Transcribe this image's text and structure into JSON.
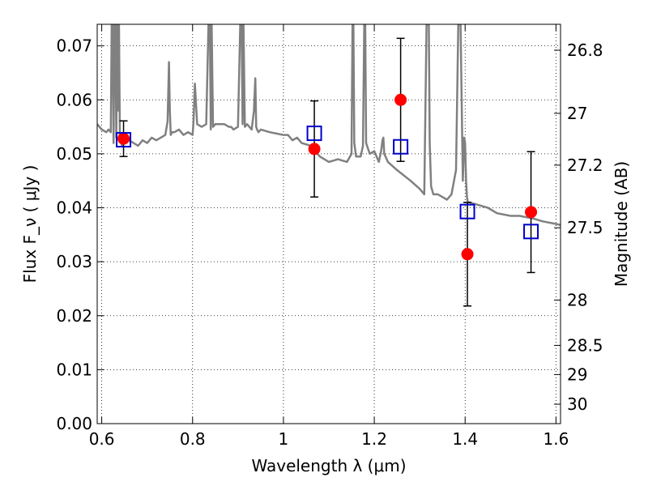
{
  "chart_data": {
    "type": "scatter",
    "xlabel": "Wavelength  λ (μm)",
    "ylabel": "Flux  F_ν ( μJy )",
    "ylabel_right": "Magnitude (AB)",
    "xlim": [
      0.59,
      1.61
    ],
    "ylim": [
      0.0,
      0.074
    ],
    "grid": true,
    "x_ticks": [
      0.6,
      0.8,
      1.0,
      1.2,
      1.4,
      1.6
    ],
    "x_tick_labels": [
      "0.6",
      "0.8",
      "1",
      "1.2",
      "1.4",
      "1.6"
    ],
    "y_ticks": [
      0.0,
      0.01,
      0.02,
      0.03,
      0.04,
      0.05,
      0.06,
      0.07
    ],
    "y_tick_labels": [
      "0.00",
      "0.01",
      "0.02",
      "0.03",
      "0.04",
      "0.05",
      "0.06",
      "0.07"
    ],
    "right_ticks": [
      {
        "label": "26.8",
        "flux": 0.0692
      },
      {
        "label": "27",
        "flux": 0.0575
      },
      {
        "label": "27.2",
        "flux": 0.0479
      },
      {
        "label": "27.5",
        "flux": 0.0363
      },
      {
        "label": "28",
        "flux": 0.0229
      },
      {
        "label": "28.5",
        "flux": 0.0145
      },
      {
        "label": "29",
        "flux": 0.0091
      },
      {
        "label": "30",
        "flux": 0.0036
      }
    ],
    "observed": {
      "points": [
        {
          "x": 0.648,
          "y": 0.0528,
          "err": 0.0033
        },
        {
          "x": 1.068,
          "y": 0.0509,
          "err": 0.0089
        },
        {
          "x": 1.258,
          "y": 0.06,
          "err": 0.0114
        },
        {
          "x": 1.405,
          "y": 0.0314,
          "err": 0.0096
        },
        {
          "x": 1.545,
          "y": 0.0392,
          "err": 0.0112
        }
      ],
      "color": "#ff0000"
    },
    "model_photometry": {
      "points": [
        {
          "x": 0.648,
          "y": 0.0526
        },
        {
          "x": 1.068,
          "y": 0.0538
        },
        {
          "x": 1.258,
          "y": 0.0513
        },
        {
          "x": 1.405,
          "y": 0.0393
        },
        {
          "x": 1.545,
          "y": 0.0356
        }
      ],
      "color": "#0000cc"
    },
    "spectrum": {
      "color": "#808080",
      "x": [
        0.59,
        0.6,
        0.61,
        0.615,
        0.62,
        0.622,
        0.624,
        0.626,
        0.628,
        0.63,
        0.632,
        0.634,
        0.636,
        0.638,
        0.64,
        0.645,
        0.65,
        0.66,
        0.67,
        0.68,
        0.69,
        0.7,
        0.71,
        0.72,
        0.73,
        0.74,
        0.745,
        0.748,
        0.75,
        0.752,
        0.755,
        0.76,
        0.77,
        0.78,
        0.79,
        0.8,
        0.802,
        0.805,
        0.81,
        0.82,
        0.83,
        0.835,
        0.838,
        0.84,
        0.842,
        0.845,
        0.85,
        0.87,
        0.88,
        0.885,
        0.89,
        0.9,
        0.905,
        0.908,
        0.91,
        0.912,
        0.915,
        0.92,
        0.93,
        0.935,
        0.938,
        0.94,
        0.942,
        0.945,
        0.95,
        0.97,
        1.0,
        1.01,
        1.02,
        1.03,
        1.04,
        1.06,
        1.07,
        1.08,
        1.1,
        1.12,
        1.14,
        1.15,
        1.152,
        1.154,
        1.156,
        1.16,
        1.17,
        1.175,
        1.178,
        1.18,
        1.182,
        1.19,
        1.2,
        1.21,
        1.215,
        1.218,
        1.22,
        1.222,
        1.23,
        1.25,
        1.28,
        1.3,
        1.31,
        1.315,
        1.318,
        1.32,
        1.322,
        1.325,
        1.33,
        1.34,
        1.35,
        1.36,
        1.37,
        1.38,
        1.385,
        1.39,
        1.395,
        1.398,
        1.4,
        1.402,
        1.404,
        1.406,
        1.41,
        1.43,
        1.45,
        1.47,
        1.5,
        1.52,
        1.55,
        1.57,
        1.6,
        1.61
      ],
      "y": [
        0.0555,
        0.0545,
        0.054,
        0.0545,
        0.054,
        0.074,
        0.074,
        0.052,
        0.074,
        0.074,
        0.053,
        0.074,
        0.058,
        0.074,
        0.0525,
        0.0515,
        0.052,
        0.0525,
        0.052,
        0.0515,
        0.0525,
        0.052,
        0.053,
        0.0525,
        0.053,
        0.0535,
        0.056,
        0.067,
        0.058,
        0.0535,
        0.054,
        0.054,
        0.0545,
        0.0535,
        0.054,
        0.0535,
        0.056,
        0.063,
        0.0555,
        0.055,
        0.0555,
        0.074,
        0.074,
        0.0545,
        0.074,
        0.055,
        0.0555,
        0.0555,
        0.055,
        0.055,
        0.0545,
        0.055,
        0.074,
        0.074,
        0.0555,
        0.074,
        0.055,
        0.0555,
        0.0545,
        0.058,
        0.064,
        0.055,
        0.0545,
        0.054,
        0.0545,
        0.054,
        0.0535,
        0.0535,
        0.0525,
        0.053,
        0.052,
        0.0515,
        0.0505,
        0.0495,
        0.0485,
        0.049,
        0.0485,
        0.05,
        0.074,
        0.074,
        0.052,
        0.0495,
        0.0495,
        0.0515,
        0.074,
        0.074,
        0.052,
        0.05,
        0.0505,
        0.0485,
        0.0505,
        0.0525,
        0.053,
        0.05,
        0.0485,
        0.047,
        0.045,
        0.0435,
        0.0425,
        0.074,
        0.074,
        0.074,
        0.052,
        0.044,
        0.0425,
        0.0425,
        0.042,
        0.0415,
        0.0425,
        0.047,
        0.074,
        0.074,
        0.045,
        0.053,
        0.052,
        0.045,
        0.042,
        0.041,
        0.041,
        0.0405,
        0.04,
        0.039,
        0.0385,
        0.0385,
        0.038,
        0.0375,
        0.037,
        0.0368
      ]
    }
  }
}
